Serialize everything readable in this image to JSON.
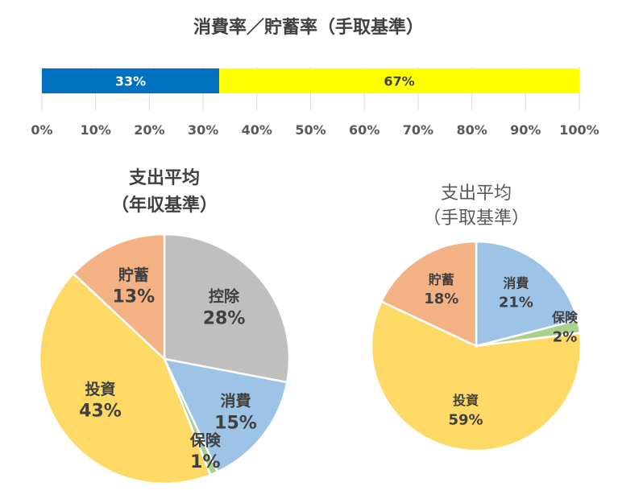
{
  "chart_data": [
    {
      "type": "bar",
      "orientation": "horizontal-stacked",
      "title": "消費率／貯蓄率（手取基準）",
      "series": [
        {
          "name": "消費率",
          "value": 33,
          "label": "33%",
          "color": "#0070C0"
        },
        {
          "name": "貯蓄率",
          "value": 67,
          "label": "67%",
          "color": "#FFFF00"
        }
      ],
      "xlim": [
        0,
        100
      ],
      "ticks": [
        "0%",
        "10%",
        "20%",
        "30%",
        "40%",
        "50%",
        "60%",
        "70%",
        "80%",
        "90%",
        "100%"
      ],
      "grid": true
    },
    {
      "type": "pie",
      "title_line1": "支出平均",
      "title_line2": "（年収基準）",
      "slices": [
        {
          "name": "控除",
          "value": 28,
          "label": "28%",
          "color": "#BFBFBF"
        },
        {
          "name": "消費",
          "value": 15,
          "label": "15%",
          "color": "#9DC3E6"
        },
        {
          "name": "保険",
          "value": 1,
          "label": "1%",
          "color": "#A9D18E"
        },
        {
          "name": "投資",
          "value": 43,
          "label": "43%",
          "color": "#FFD966"
        },
        {
          "name": "貯蓄",
          "value": 13,
          "label": "13%",
          "color": "#F4B183"
        }
      ]
    },
    {
      "type": "pie",
      "title_line1": "支出平均",
      "title_line2": "（手取基準）",
      "slices": [
        {
          "name": "消費",
          "value": 21,
          "label": "21%",
          "color": "#9DC3E6"
        },
        {
          "name": "保険",
          "value": 2,
          "label": "2%",
          "color": "#A9D18E"
        },
        {
          "name": "投資",
          "value": 59,
          "label": "59%",
          "color": "#FFD966"
        },
        {
          "name": "貯蓄",
          "value": 18,
          "label": "18%",
          "color": "#F4B183"
        }
      ]
    }
  ]
}
